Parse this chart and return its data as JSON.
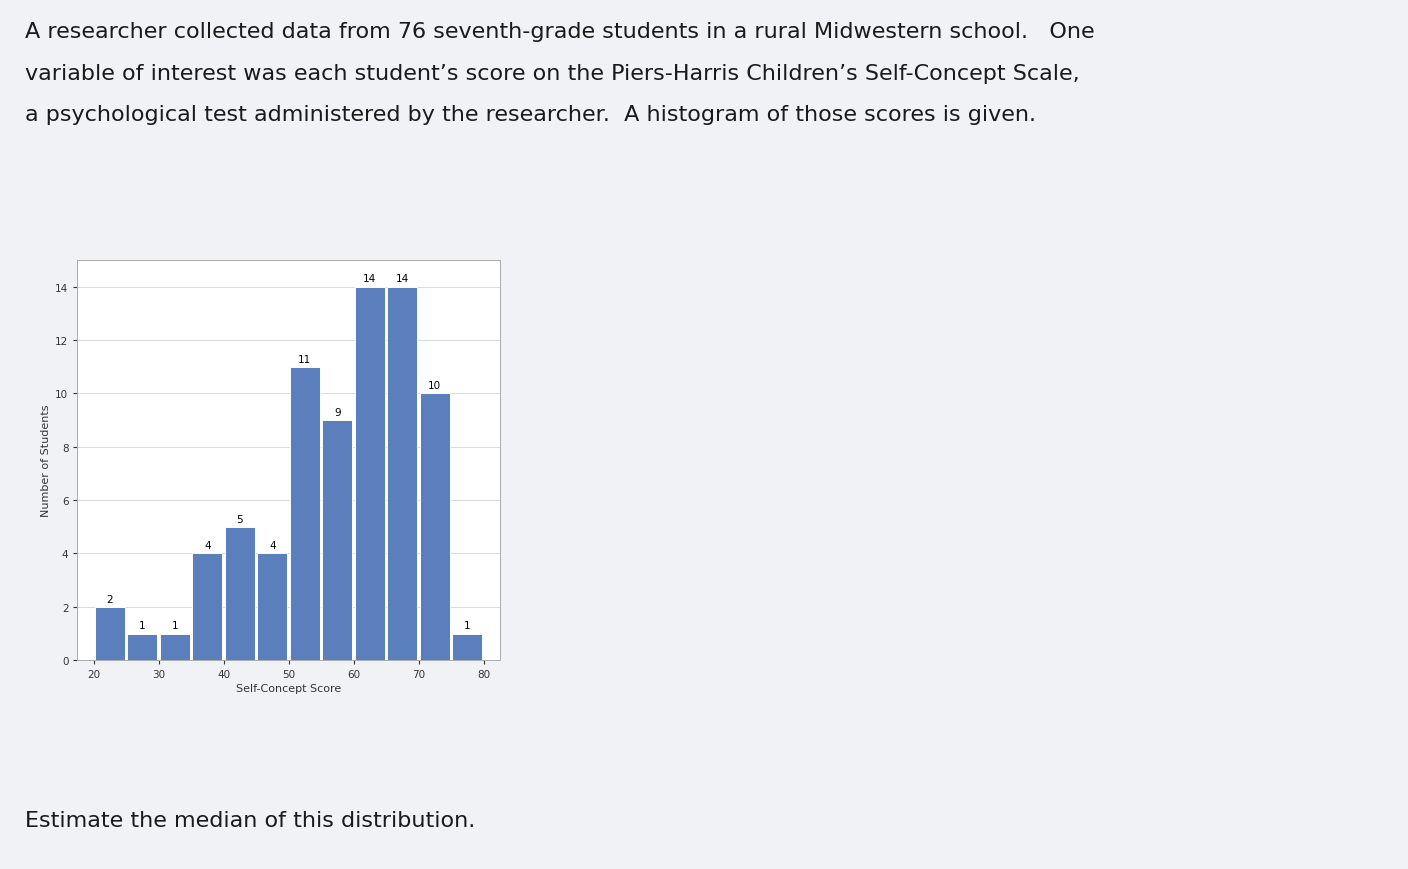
{
  "bin_edges": [
    20,
    25,
    30,
    35,
    40,
    45,
    50,
    55,
    60,
    65,
    70,
    75,
    80
  ],
  "values": [
    2,
    1,
    1,
    4,
    5,
    4,
    11,
    9,
    14,
    14,
    10,
    1
  ],
  "bar_color": "#5b7fbc",
  "bar_edgecolor": "#ffffff",
  "ylabel": "Number of Students",
  "xlabel": "Self-Concept Score",
  "ylim": [
    0,
    15
  ],
  "yticks": [
    0,
    2,
    4,
    6,
    8,
    10,
    12,
    14
  ],
  "xticks": [
    20,
    30,
    40,
    50,
    60,
    70,
    80
  ],
  "page_bg_color": "#f0f2f5",
  "plot_bg_color": "#ffffff",
  "title_line1": "A researcher collected data from 76 seventh-grade students in a rural Midwestern school.   One",
  "title_line2": "variable of interest was each student’s score on the Piers-Harris Children’s Self-Concept Scale,",
  "title_line3": "a psychological test administered by the researcher.  A histogram of those scores is given.",
  "footer_text": "Estimate the median of this distribution.",
  "title_fontsize": 16,
  "bar_label_fontsize": 7.5,
  "axis_label_fontsize": 8,
  "tick_fontsize": 7.5,
  "footer_fontsize": 16,
  "text_color": "#1a1a1a"
}
